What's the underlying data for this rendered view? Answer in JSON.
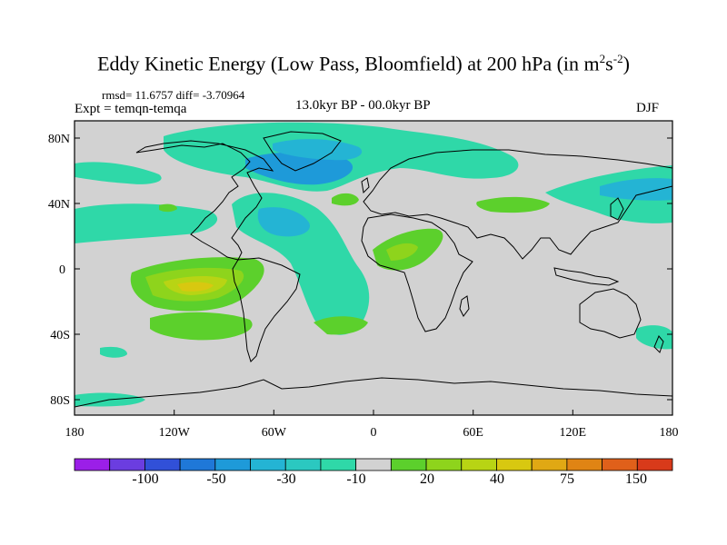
{
  "title": {
    "main": "Eddy Kinetic Energy (Low Pass, Bloomfield) at 200 hPa (in m",
    "sup1": "2",
    "mid": "s",
    "sup2": "-2",
    "end": ")"
  },
  "stats": "rmsd= 11.6757 diff= -3.70964",
  "expt": "Expt = temqn-temqa",
  "center_title": "13.0kyr BP - 00.0kyr BP",
  "season": "DJF",
  "map": {
    "projection": "cylindrical equidistant",
    "lon_range": [
      -180,
      180
    ],
    "lat_range": [
      -90,
      90
    ],
    "ocean_land_fill": "#d2d2d2",
    "x_ticks": [
      "180",
      "120W",
      "60W",
      "0",
      "60E",
      "120E",
      "180"
    ],
    "y_ticks": [
      "80N",
      "40N",
      "0",
      "40S",
      "80S"
    ]
  },
  "colorbar": {
    "colors": [
      "#9b1fe8",
      "#6b3de0",
      "#3150d8",
      "#1f78d8",
      "#1e9ad9",
      "#24b4d4",
      "#2bc8c0",
      "#2fd8a8",
      "#d2d2d2",
      "#5cd02c",
      "#8ed41c",
      "#b8d414",
      "#d8c810",
      "#e0a814",
      "#e08414",
      "#e0601a",
      "#d83a1a"
    ],
    "labels": [
      "-100",
      "-50",
      "-30",
      "-10",
      "20",
      "40",
      "75",
      "150"
    ]
  },
  "colors": {
    "neg1": "#2fd8a8",
    "neg2": "#24b4d4",
    "neg3": "#1e9ad9",
    "pos1": "#5cd02c",
    "pos2": "#8ed41c",
    "pos3": "#b8d414",
    "pos4": "#d8c810"
  }
}
